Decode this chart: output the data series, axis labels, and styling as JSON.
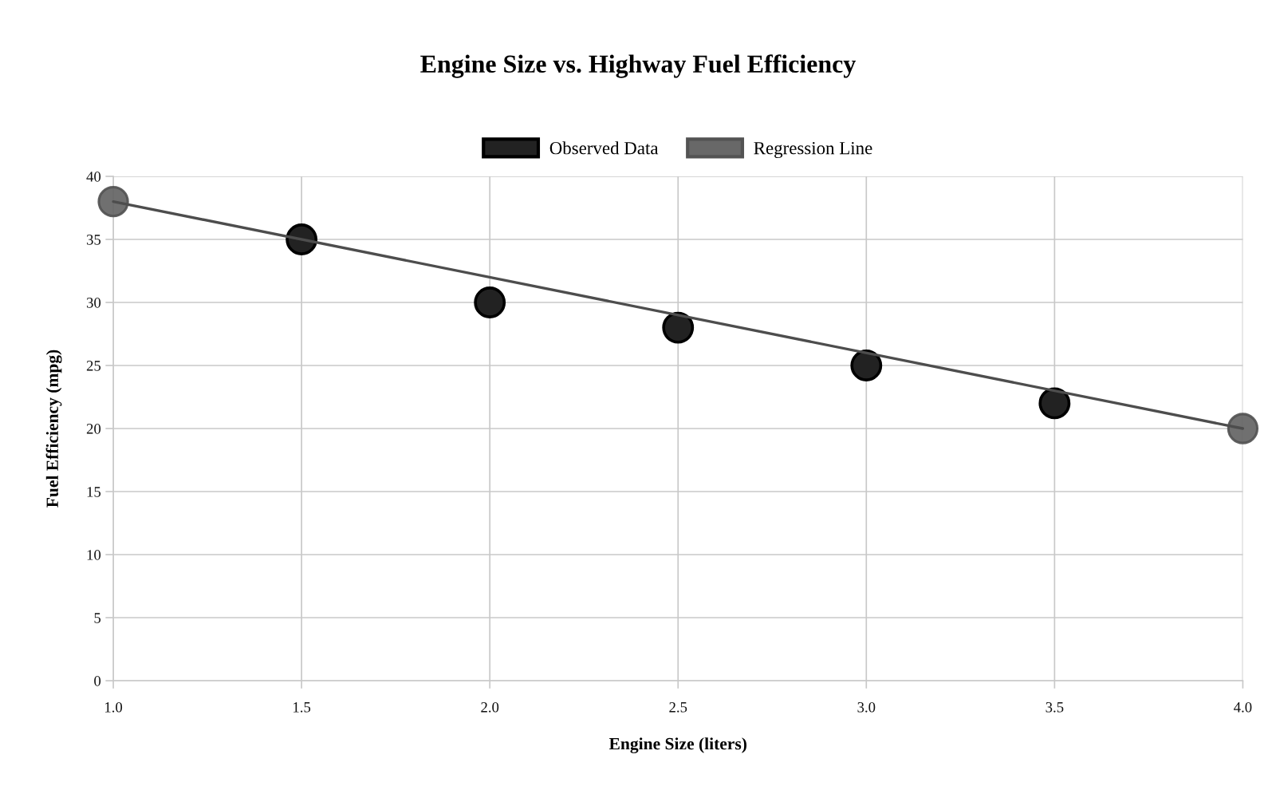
{
  "chart_data": {
    "type": "scatter",
    "title": "Engine Size vs. Highway Fuel Efficiency",
    "xlabel": "Engine Size (liters)",
    "ylabel": "Fuel Efficiency (mpg)",
    "xlim": [
      1,
      4
    ],
    "ylim": [
      0,
      40
    ],
    "xticks": [
      {
        "value": 1,
        "label": "1.0"
      },
      {
        "value": 1.5,
        "label": "1.5"
      },
      {
        "value": 2,
        "label": "2.0"
      },
      {
        "value": 2.5,
        "label": "2.5"
      },
      {
        "value": 3,
        "label": "3.0"
      },
      {
        "value": 3.5,
        "label": "3.5"
      },
      {
        "value": 4,
        "label": "4.0"
      }
    ],
    "yticks": [
      0,
      5,
      10,
      15,
      20,
      25,
      30,
      35,
      40
    ],
    "grid": true,
    "legend": "top",
    "series": [
      {
        "name": "Observed Data",
        "color": "#222222",
        "marker": "circle",
        "x": [
          1.5,
          2,
          2.5,
          3,
          3.5
        ],
        "values": [
          35,
          30,
          28,
          25,
          22
        ]
      },
      {
        "name": "Regression Line",
        "type": "line",
        "color": "#4d4d4d",
        "marker": "circle",
        "x": [
          1,
          4
        ],
        "values": [
          38,
          20
        ]
      }
    ]
  }
}
